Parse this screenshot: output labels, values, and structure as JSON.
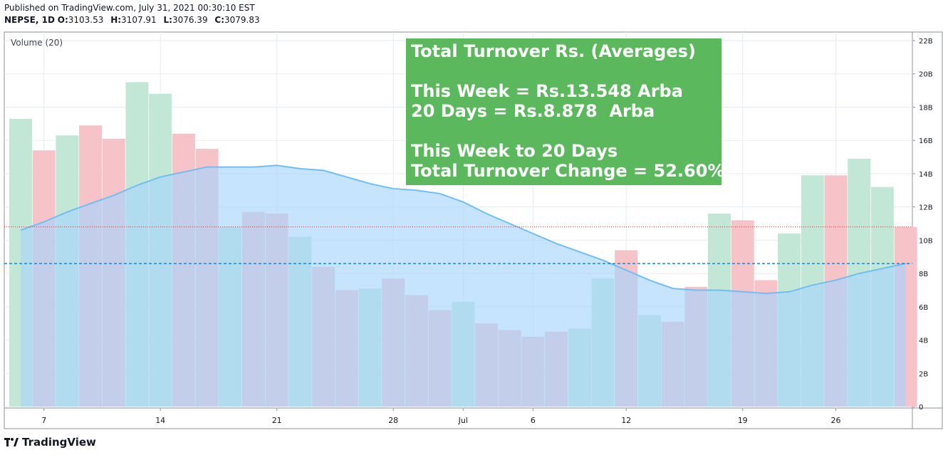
{
  "header": {
    "published": "Published on TradingView.com, July 31, 2021 00:30:10 EST",
    "symbol": "NEPSE, 1D",
    "open_label": "O:",
    "open": "3103.53",
    "high_label": "H:",
    "high": "3107.91",
    "low_label": "L:",
    "low": "3076.39",
    "close_label": "C:",
    "close": "3079.83"
  },
  "info_box": {
    "line1": "Total Turnover Rs. (Averages)",
    "line2": "This Week = Rs.13.548 Arba",
    "line3": "20 Days = Rs.8.878  Arba",
    "line4": "This Week to 20 Days",
    "line5": "Total Turnover Change = 52.60%",
    "color": "#5cb85c"
  },
  "footer": {
    "brand": "TradingView"
  },
  "chart_data": {
    "type": "bar",
    "title": "Volume (20)",
    "unit": "B",
    "bars": [
      {
        "value": 17.3,
        "dir": "up"
      },
      {
        "value": 15.4,
        "dir": "down"
      },
      {
        "value": 16.3,
        "dir": "up"
      },
      {
        "value": 16.9,
        "dir": "down"
      },
      {
        "value": 16.1,
        "dir": "down"
      },
      {
        "value": 19.5,
        "dir": "up"
      },
      {
        "value": 18.8,
        "dir": "up"
      },
      {
        "value": 16.4,
        "dir": "down"
      },
      {
        "value": 15.5,
        "dir": "down"
      },
      {
        "value": 10.8,
        "dir": "up"
      },
      {
        "value": 11.7,
        "dir": "down"
      },
      {
        "value": 11.6,
        "dir": "down"
      },
      {
        "value": 10.2,
        "dir": "up"
      },
      {
        "value": 8.4,
        "dir": "down"
      },
      {
        "value": 7.0,
        "dir": "down"
      },
      {
        "value": 7.1,
        "dir": "up"
      },
      {
        "value": 7.7,
        "dir": "down"
      },
      {
        "value": 6.7,
        "dir": "down"
      },
      {
        "value": 5.8,
        "dir": "down"
      },
      {
        "value": 6.3,
        "dir": "up"
      },
      {
        "value": 5.0,
        "dir": "down"
      },
      {
        "value": 4.6,
        "dir": "down"
      },
      {
        "value": 4.2,
        "dir": "down"
      },
      {
        "value": 4.5,
        "dir": "down"
      },
      {
        "value": 4.7,
        "dir": "up"
      },
      {
        "value": 7.7,
        "dir": "up"
      },
      {
        "value": 9.4,
        "dir": "down"
      },
      {
        "value": 5.5,
        "dir": "up"
      },
      {
        "value": 5.1,
        "dir": "down"
      },
      {
        "value": 7.2,
        "dir": "down"
      },
      {
        "value": 11.6,
        "dir": "up"
      },
      {
        "value": 11.2,
        "dir": "down"
      },
      {
        "value": 7.6,
        "dir": "down"
      },
      {
        "value": 10.4,
        "dir": "up"
      },
      {
        "value": 13.9,
        "dir": "up"
      },
      {
        "value": 13.9,
        "dir": "down"
      },
      {
        "value": 14.9,
        "dir": "up"
      },
      {
        "value": 13.2,
        "dir": "up"
      },
      {
        "value": 10.8,
        "dir": "down"
      }
    ],
    "ma_period": 20,
    "ma": [
      10.6,
      11.1,
      11.7,
      12.2,
      12.7,
      13.3,
      13.8,
      14.1,
      14.4,
      14.4,
      14.4,
      14.5,
      14.3,
      14.2,
      13.8,
      13.4,
      13.1,
      13.0,
      12.8,
      12.3,
      11.6,
      11.0,
      10.4,
      9.8,
      9.3,
      8.8,
      8.2,
      7.6,
      7.1,
      7.0,
      7.0,
      6.9,
      6.8,
      6.9,
      7.3,
      7.6,
      8.0,
      8.3,
      8.6
    ],
    "ma_last_value": 8.6,
    "last_value": 10.8,
    "y_ticks": [
      "0",
      "2B",
      "4B",
      "6B",
      "8B",
      "10B",
      "12B",
      "14B",
      "16B",
      "18B",
      "20B",
      "22B"
    ],
    "ylim": [
      0,
      22
    ],
    "x_ticks": [
      {
        "label": "7",
        "index": 1
      },
      {
        "label": "14",
        "index": 6
      },
      {
        "label": "21",
        "index": 11
      },
      {
        "label": "28",
        "index": 16
      },
      {
        "label": "Jul",
        "index": 19
      },
      {
        "label": "6",
        "index": 22
      },
      {
        "label": "12",
        "index": 26
      },
      {
        "label": "19",
        "index": 31
      },
      {
        "label": "26",
        "index": 35
      }
    ],
    "colors": {
      "up": "#c3e7d6",
      "down": "#f6c4c8",
      "ma_fill": "#a7d6fc",
      "ma_line": "#6fbef5",
      "ma_dashed": "#1e88d8",
      "last_line": "#c73a3a",
      "grid": "#e6ebf2",
      "axis": "#8d919a"
    }
  }
}
